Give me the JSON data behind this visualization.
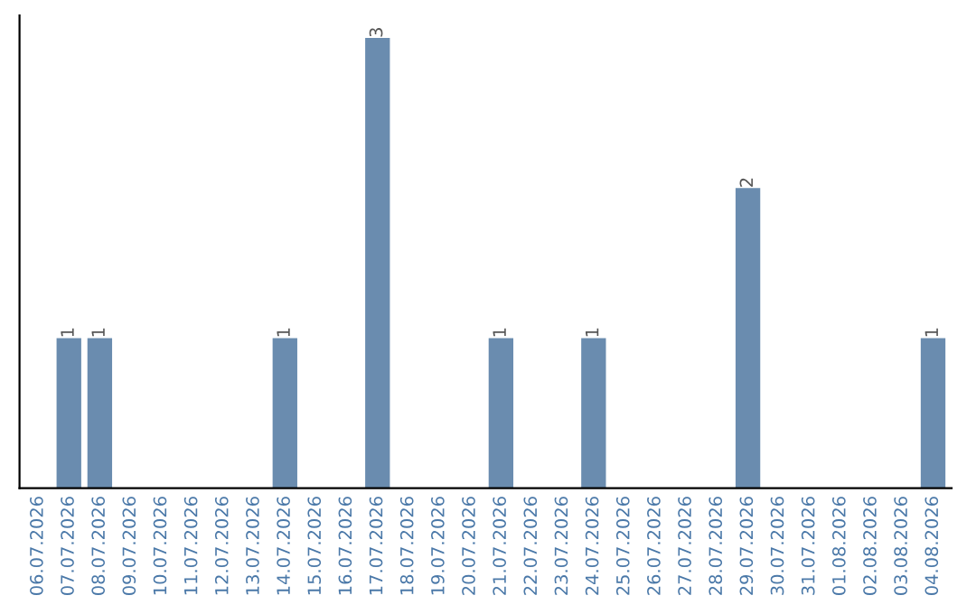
{
  "chart_data": {
    "type": "bar",
    "categories": [
      "06.07.2026",
      "07.07.2026",
      "08.07.2026",
      "09.07.2026",
      "10.07.2026",
      "11.07.2026",
      "12.07.2026",
      "13.07.2026",
      "14.07.2026",
      "15.07.2026",
      "16.07.2026",
      "17.07.2026",
      "18.07.2026",
      "19.07.2026",
      "20.07.2026",
      "21.07.2026",
      "22.07.2026",
      "23.07.2026",
      "24.07.2026",
      "25.07.2026",
      "26.07.2026",
      "27.07.2026",
      "28.07.2026",
      "29.07.2026",
      "30.07.2026",
      "31.07.2026",
      "01.08.2026",
      "02.08.2026",
      "03.08.2026",
      "04.08.2026"
    ],
    "values": [
      0,
      1,
      1,
      0,
      0,
      0,
      0,
      0,
      1,
      0,
      0,
      3,
      0,
      0,
      0,
      1,
      0,
      0,
      1,
      0,
      0,
      0,
      0,
      2,
      0,
      0,
      0,
      0,
      0,
      1
    ],
    "value_labels": [
      null,
      "1",
      "1",
      null,
      null,
      null,
      null,
      null,
      "1",
      null,
      null,
      "3",
      null,
      null,
      null,
      "1",
      null,
      null,
      "1",
      null,
      null,
      null,
      null,
      "2",
      null,
      null,
      null,
      null,
      null,
      "1"
    ],
    "color": "#6a8caf",
    "tick_labels": "x",
    "grid": false,
    "legend": false
  }
}
